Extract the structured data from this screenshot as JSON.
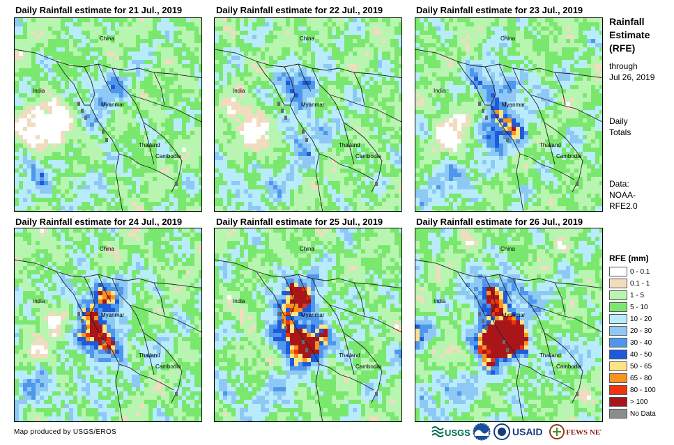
{
  "panels": [
    {
      "title": "Daily Rainfall estimate for 21 Jul., 2019",
      "intensity": 0
    },
    {
      "title": "Daily Rainfall estimate for 22 Jul., 2019",
      "intensity": 1
    },
    {
      "title": "Daily Rainfall estimate for 23 Jul., 2019",
      "intensity": 2
    },
    {
      "title": "Daily Rainfall estimate for 24 Jul., 2019",
      "intensity": 3
    },
    {
      "title": "Daily Rainfall estimate for 25 Jul., 2019",
      "intensity": 4
    },
    {
      "title": "Daily Rainfall estimate for 26 Jul., 2019",
      "intensity": 5
    }
  ],
  "map_labels": {
    "china": "China",
    "india": "India",
    "myanmar": "Myanmar",
    "thailand": "Thailand",
    "cambodia": "Cambodia"
  },
  "side": {
    "title_line1": "Rainfall",
    "title_line2": "Estimate",
    "title_line3": "(RFE)",
    "through": "through",
    "date": "Jul 26, 2019",
    "daily": "Daily",
    "totals": "Totals",
    "data_label": "Data:",
    "data_src1": "NOAA-",
    "data_src2": "RFE2.0"
  },
  "legend": {
    "title": "RFE (mm)",
    "items": [
      {
        "label": "0 - 0.1",
        "color": "#ffffff"
      },
      {
        "label": "0.1 - 1",
        "color": "#f1dcbf"
      },
      {
        "label": "1 - 5",
        "color": "#b8f5b0"
      },
      {
        "label": "5 - 10",
        "color": "#7ae86e"
      },
      {
        "label": "10 - 20",
        "color": "#b8ecfb"
      },
      {
        "label": "20 - 30",
        "color": "#8ec9f5"
      },
      {
        "label": "30 - 40",
        "color": "#4f97ec"
      },
      {
        "label": "40 - 50",
        "color": "#1f5ad8"
      },
      {
        "label": "50 - 65",
        "color": "#fce486"
      },
      {
        "label": "65 - 80",
        "color": "#f7931e"
      },
      {
        "label": "80 - 100",
        "color": "#f2340c"
      },
      {
        "label": "> 100",
        "color": "#a8161a"
      },
      {
        "label": "No Data",
        "color": "#8c8c8c"
      }
    ]
  },
  "credit": "Map produced by USGS/EROS",
  "logos": {
    "usgs": "USGS",
    "usaid": "USAID",
    "fewsnet": "FEWS NET"
  }
}
